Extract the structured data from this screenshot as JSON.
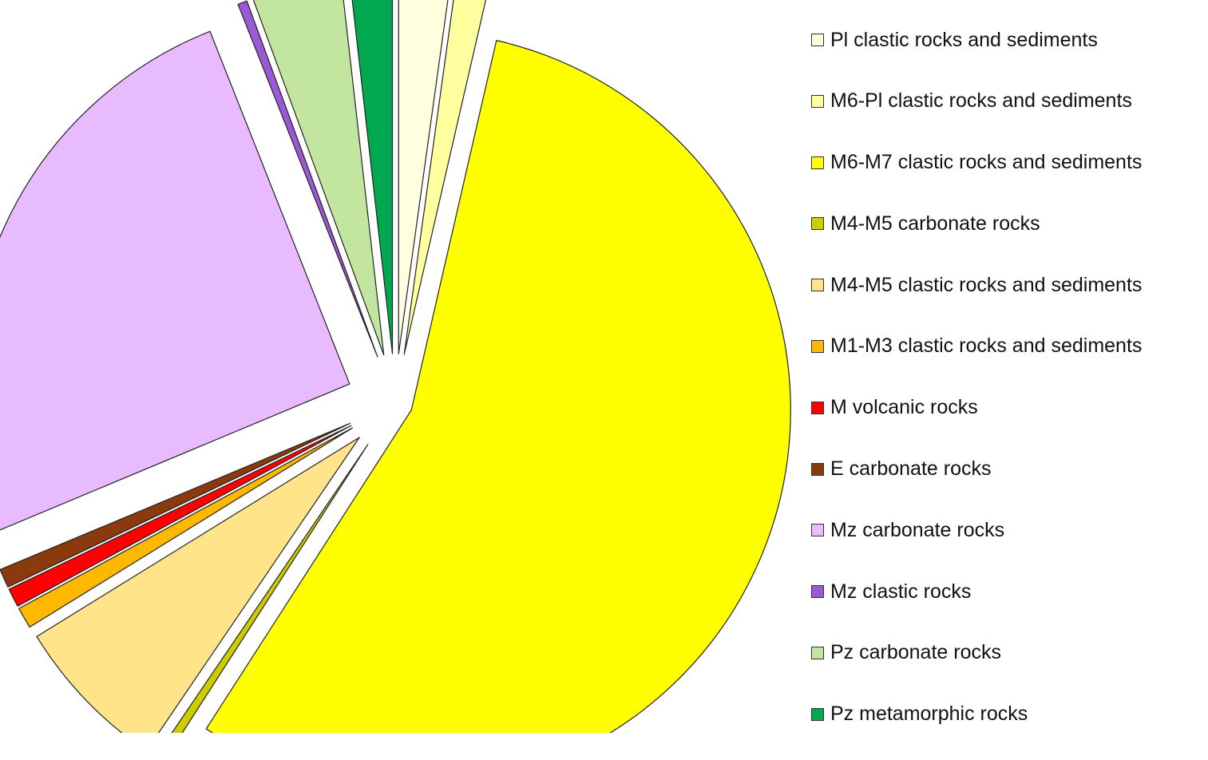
{
  "chart_data": {
    "type": "pie",
    "title": "",
    "legend_position": "right",
    "slices": [
      {
        "label": "Pl clastic rocks and sediments",
        "value": 2.2,
        "color": "#FFFFE0"
      },
      {
        "label": "M6-Pl clastic rocks and sediments",
        "value": 1.4,
        "color": "#FFFFA0"
      },
      {
        "label": "M6-M7 clastic rocks and sediments",
        "value": 55.5,
        "color": "#FFFF00"
      },
      {
        "label": "M4-M5 carbonate rocks",
        "value": 0.4,
        "color": "#CCCC00"
      },
      {
        "label": "M4-M5 clastic rocks and sediments",
        "value": 6.7,
        "color": "#FFE48A"
      },
      {
        "label": "M1-M3 clastic rocks and sediments",
        "value": 0.9,
        "color": "#FFB800"
      },
      {
        "label": "M volcanic rocks",
        "value": 0.8,
        "color": "#FF0000"
      },
      {
        "label": "E carbonate rocks",
        "value": 0.8,
        "color": "#8B3A0E"
      },
      {
        "label": "Mz carbonate rocks",
        "value": 25.3,
        "color": "#E8BBFF"
      },
      {
        "label": "Mz clastic rocks",
        "value": 0.4,
        "color": "#9B59D6"
      },
      {
        "label": "Pz carbonate rocks",
        "value": 3.8,
        "color": "#C2E6A0"
      },
      {
        "label": "Pz metamorphic rocks",
        "value": 1.8,
        "color": "#00A850"
      }
    ]
  }
}
